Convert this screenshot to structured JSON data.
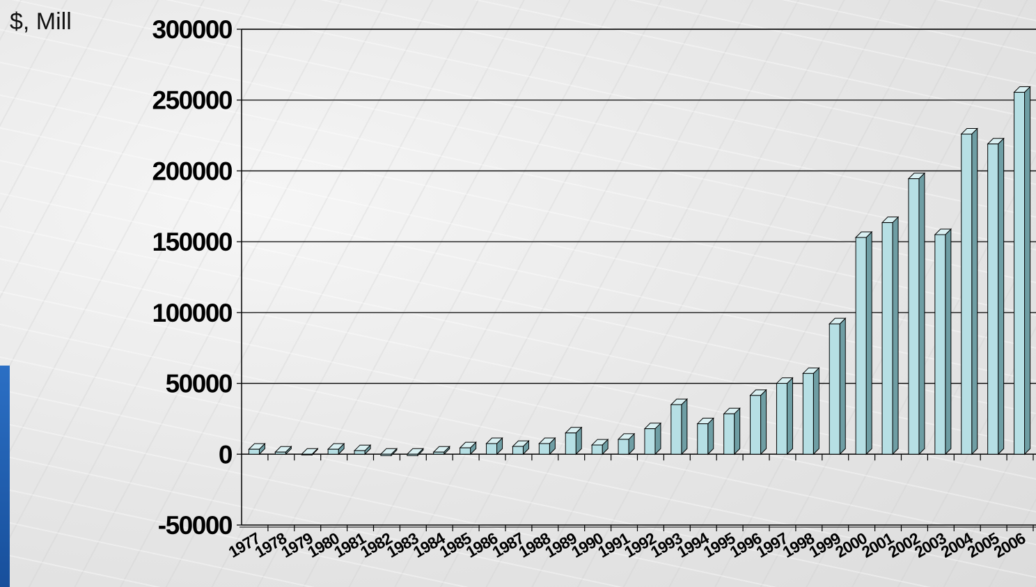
{
  "unit_label": "$, Mill",
  "colors": {
    "bar_front": "#b6dfe4",
    "bar_top": "#d9f0f2",
    "bar_side": "#6f9ea4",
    "axis": "#000000",
    "accent_tab": "#1f5fb0"
  },
  "chart_data": {
    "type": "bar",
    "title": "",
    "xlabel": "",
    "ylabel": "$, Mill",
    "ylim": [
      -50000,
      300000
    ],
    "yticks": [
      300000,
      250000,
      200000,
      150000,
      100000,
      50000,
      0,
      -50000
    ],
    "grid": true,
    "categories": [
      "1977",
      "1978",
      "1979",
      "1980",
      "1981",
      "1982",
      "1983",
      "1984",
      "1985",
      "1986",
      "1987",
      "1988",
      "1989",
      "1990",
      "1991",
      "1992",
      "1993",
      "1994",
      "1995",
      "1996",
      "1997",
      "1998",
      "1999",
      "2000",
      "2001",
      "2002",
      "2003",
      "2004",
      "2005",
      "2006"
    ],
    "values": [
      3500,
      1500,
      -500,
      3500,
      2500,
      -1000,
      -1000,
      1500,
      4500,
      7500,
      5500,
      7500,
      15000,
      6500,
      10500,
      18000,
      35000,
      21500,
      28500,
      41500,
      50000,
      57000,
      92000,
      153000,
      163500,
      194500,
      155000,
      226000,
      219000,
      255500
    ]
  }
}
